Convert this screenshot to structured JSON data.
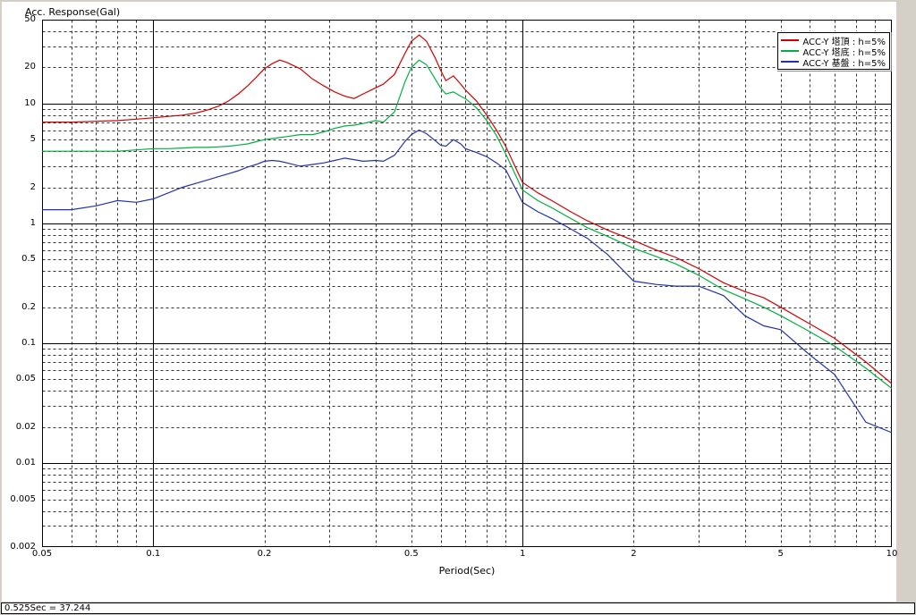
{
  "window": {
    "background": "#d4d0c8",
    "canvas_background": "#ffffff"
  },
  "status_bar": {
    "text": "0.525Sec = 37.244"
  },
  "chart_data": {
    "type": "line",
    "title": "Acc. Response(Gal)",
    "xlabel": "Period(Sec)",
    "ylabel": "Acc. Response(Gal)",
    "x_scale": "log",
    "y_scale": "log",
    "xlim": [
      0.05,
      10
    ],
    "ylim": [
      0.002,
      50
    ],
    "grid": "major solid, minor dashed (log-log)",
    "legend_position": "top-right",
    "x_tick_values": [
      0.05,
      0.1,
      0.2,
      0.5,
      1,
      2,
      5,
      10
    ],
    "x_tick_labels": [
      "0.05",
      "0.1",
      "0.2",
      "0.5",
      "1",
      "2",
      "5",
      "10"
    ],
    "y_tick_values": [
      50,
      20,
      10,
      5,
      2,
      1,
      0.5,
      0.2,
      0.1,
      0.05,
      0.02,
      0.01,
      0.005,
      0.002
    ],
    "y_tick_labels": [
      "50",
      "20",
      "10",
      "5",
      "2",
      "1",
      "0.5",
      "0.2",
      "0.1",
      "0.05",
      "0.02",
      "0.01",
      "0.005",
      "0.002"
    ],
    "x": [
      0.05,
      0.06,
      0.07,
      0.08,
      0.09,
      0.1,
      0.11,
      0.12,
      0.13,
      0.14,
      0.15,
      0.16,
      0.17,
      0.18,
      0.19,
      0.2,
      0.21,
      0.22,
      0.23,
      0.25,
      0.27,
      0.29,
      0.31,
      0.33,
      0.35,
      0.37,
      0.4,
      0.42,
      0.45,
      0.48,
      0.5,
      0.525,
      0.55,
      0.58,
      0.6,
      0.62,
      0.65,
      0.68,
      0.7,
      0.75,
      0.8,
      0.85,
      0.9,
      1.0,
      1.1,
      1.2,
      1.35,
      1.5,
      1.7,
      2.0,
      2.3,
      2.6,
      3.0,
      3.5,
      4.0,
      4.5,
      5.0,
      6.0,
      7.0,
      8.5,
      10.0
    ],
    "series": [
      {
        "name": "ACC-Y 塔頂 : h=5%",
        "color": "#d40000",
        "values": [
          7.0,
          7.0,
          7.1,
          7.2,
          7.4,
          7.6,
          7.8,
          8.0,
          8.3,
          8.8,
          9.5,
          10.5,
          12,
          14,
          16.5,
          19.5,
          21.5,
          23,
          22,
          19.5,
          16,
          14,
          12.5,
          11.5,
          11,
          12,
          13.5,
          14.5,
          17.5,
          26,
          33,
          37.2,
          33,
          24,
          19,
          15.5,
          17,
          14.5,
          13,
          10.5,
          8.0,
          6.0,
          4.4,
          2.2,
          1.8,
          1.55,
          1.25,
          1.05,
          0.88,
          0.72,
          0.6,
          0.52,
          0.42,
          0.32,
          0.27,
          0.24,
          0.2,
          0.145,
          0.11,
          0.07,
          0.046
        ]
      },
      {
        "name": "ACC-Y 塔底 : h=5%",
        "color": "#00b040",
        "values": [
          4.0,
          4.0,
          4.0,
          4.0,
          4.1,
          4.2,
          4.2,
          4.25,
          4.3,
          4.3,
          4.35,
          4.4,
          4.5,
          4.6,
          4.8,
          5.0,
          5.1,
          5.2,
          5.3,
          5.5,
          5.5,
          5.8,
          6.2,
          6.5,
          6.6,
          6.8,
          7.2,
          7.0,
          8.5,
          15,
          20,
          23,
          21,
          16,
          13.5,
          12,
          12.5,
          11.5,
          11,
          9.2,
          7.2,
          5.4,
          3.8,
          1.9,
          1.55,
          1.35,
          1.1,
          0.92,
          0.78,
          0.62,
          0.53,
          0.46,
          0.37,
          0.28,
          0.235,
          0.2,
          0.17,
          0.125,
          0.095,
          0.062,
          0.042
        ]
      },
      {
        "name": "ACC-Y 基盤 : h=5%",
        "color": "#2233aa",
        "values": [
          1.3,
          1.3,
          1.4,
          1.55,
          1.5,
          1.6,
          1.8,
          2.0,
          2.15,
          2.3,
          2.45,
          2.6,
          2.75,
          2.95,
          3.1,
          3.3,
          3.35,
          3.3,
          3.2,
          3.0,
          3.1,
          3.2,
          3.35,
          3.5,
          3.4,
          3.3,
          3.35,
          3.3,
          3.7,
          4.8,
          5.5,
          6.0,
          5.6,
          4.9,
          4.5,
          4.4,
          5.0,
          4.6,
          4.2,
          3.9,
          3.6,
          3.2,
          2.8,
          1.5,
          1.25,
          1.1,
          0.9,
          0.75,
          0.55,
          0.33,
          0.31,
          0.3,
          0.3,
          0.25,
          0.17,
          0.14,
          0.13,
          0.08,
          0.055,
          0.022,
          0.018
        ]
      }
    ]
  }
}
